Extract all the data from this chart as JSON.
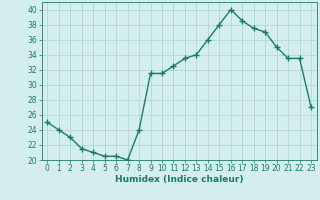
{
  "x": [
    0,
    1,
    2,
    3,
    4,
    5,
    6,
    7,
    8,
    9,
    10,
    11,
    12,
    13,
    14,
    15,
    16,
    17,
    18,
    19,
    20,
    21,
    22,
    23
  ],
  "y": [
    25,
    24,
    23,
    21.5,
    21,
    20.5,
    20.5,
    20,
    24,
    31.5,
    31.5,
    32.5,
    33.5,
    34,
    36,
    38,
    40,
    38.5,
    37.5,
    37,
    35,
    33.5,
    33.5,
    27
  ],
  "line_color": "#1a7a6e",
  "marker": "+",
  "marker_size": 4,
  "bg_color": "#d4eeee",
  "grid_color": "#aad4d4",
  "xlabel": "Humidex (Indice chaleur)",
  "xlim": [
    -0.5,
    23.5
  ],
  "ylim": [
    20,
    41
  ],
  "yticks": [
    20,
    22,
    24,
    26,
    28,
    30,
    32,
    34,
    36,
    38,
    40
  ],
  "xticks": [
    0,
    1,
    2,
    3,
    4,
    5,
    6,
    7,
    8,
    9,
    10,
    11,
    12,
    13,
    14,
    15,
    16,
    17,
    18,
    19,
    20,
    21,
    22,
    23
  ],
  "xlabel_fontsize": 6.5,
  "tick_fontsize": 5.5,
  "linewidth": 1.0
}
